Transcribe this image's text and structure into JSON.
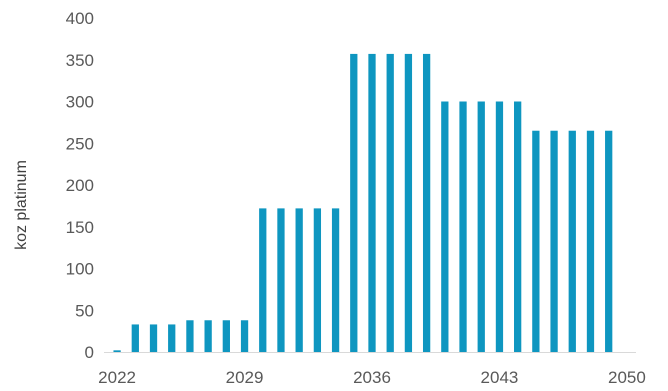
{
  "chart_data": {
    "type": "bar",
    "title": "",
    "xlabel": "",
    "ylabel": "koz platinum",
    "ylim": [
      0,
      400
    ],
    "y_ticks": [
      "0",
      "50",
      "100",
      "150",
      "200",
      "250",
      "300",
      "350",
      "400"
    ],
    "x_tick_labels": [
      "2022",
      "2029",
      "2036",
      "2043",
      "2050"
    ],
    "categories": [
      "2022",
      "2023",
      "2024",
      "2025",
      "2026",
      "2027",
      "2028",
      "2029",
      "2030",
      "2031",
      "2032",
      "2033",
      "2034",
      "2035",
      "2036",
      "2037",
      "2038",
      "2039",
      "2040",
      "2041",
      "2042",
      "2043",
      "2044",
      "2045",
      "2046",
      "2047",
      "2048",
      "2049",
      "2050"
    ],
    "values": [
      2,
      33,
      33,
      33,
      38,
      38,
      38,
      38,
      172,
      172,
      172,
      172,
      172,
      357,
      357,
      357,
      357,
      357,
      300,
      300,
      300,
      300,
      300,
      265,
      265,
      265,
      265,
      265,
      0
    ],
    "bar_color": "#0E96C0",
    "grid": false,
    "legend": "none"
  }
}
